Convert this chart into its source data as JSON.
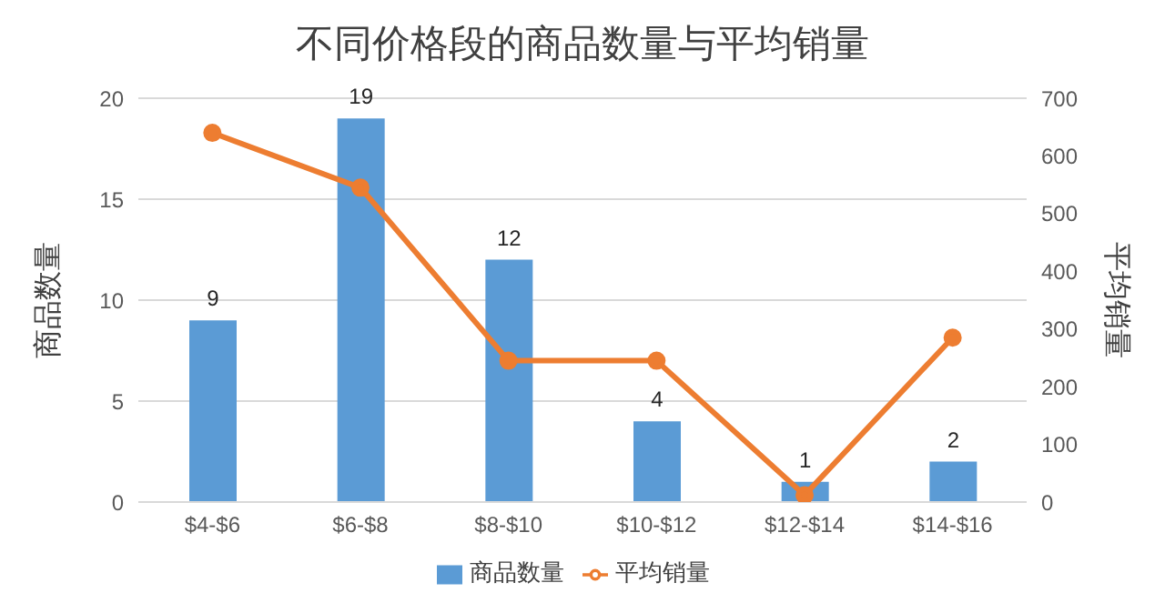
{
  "chart_data": {
    "type": "bar",
    "title": "不同价格段的商品数量与平均销量",
    "ylabel": "商品数量",
    "y2label": "平均销量",
    "categories": [
      "$4-$6",
      "$6-$8",
      "$8-$10",
      "$10-$12",
      "$12-$14",
      "$14-$16"
    ],
    "series": [
      {
        "name": "商品数量",
        "color": "#5b9bd5",
        "values": [
          9,
          19,
          12,
          4,
          1,
          2
        ],
        "data_labels": true
      },
      {
        "name": "平均销量",
        "type": "line",
        "axis": "y2",
        "color": "#ed7d31",
        "values": [
          640,
          545,
          245,
          245,
          12,
          285
        ],
        "marker": "circle"
      }
    ],
    "ylim": [
      0,
      20
    ],
    "yticks": [
      0,
      5,
      10,
      15,
      20
    ],
    "y2lim": [
      0,
      700
    ],
    "y2ticks": [
      0,
      100,
      200,
      300,
      400,
      500,
      600,
      700
    ],
    "grid": "y",
    "legend": "bottom"
  }
}
